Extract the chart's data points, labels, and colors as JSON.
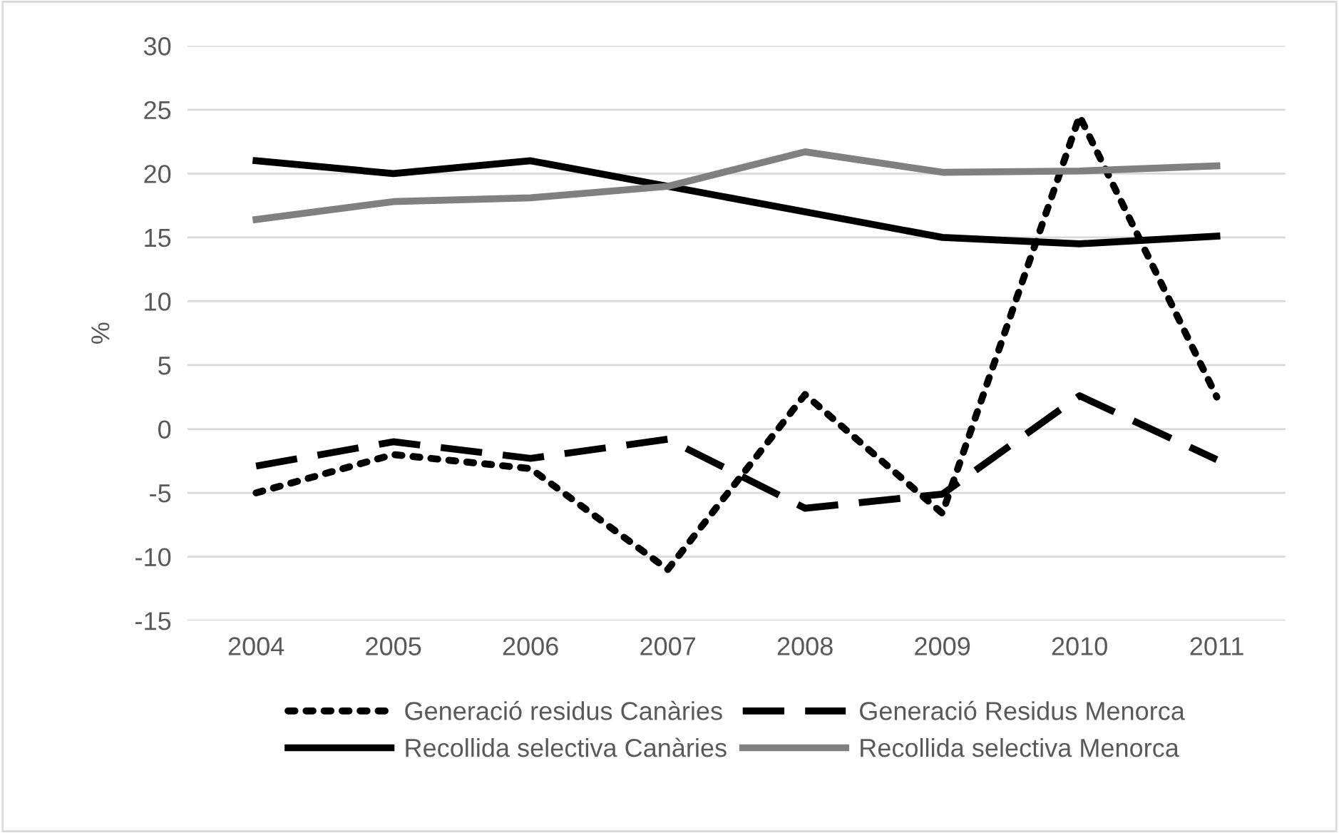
{
  "chart_data": {
    "type": "line",
    "ylabel": "%",
    "categories": [
      "2004",
      "2005",
      "2006",
      "2007",
      "2008",
      "2009",
      "2010",
      "2011"
    ],
    "ylim": [
      -15,
      30
    ],
    "yticks": [
      -15,
      -10,
      -5,
      0,
      5,
      10,
      15,
      20,
      25,
      30
    ],
    "grid": "y",
    "legend": "bottom",
    "marker": "none",
    "series": [
      {
        "name": "Generació residus Canàries",
        "color": "#000000",
        "line_style": "dotted",
        "values": [
          -5,
          -2,
          -3.1,
          -11,
          2.7,
          -6.6,
          24.5,
          2.5
        ]
      },
      {
        "name": "Recollida selectiva Canàries",
        "color": "#000000",
        "line_style": "solid",
        "values": [
          21,
          20,
          21,
          19,
          17,
          15,
          14.5,
          15.1
        ]
      },
      {
        "name": "Generació Residus Menorca",
        "color": "#000000",
        "line_style": "dashed",
        "values": [
          -2.9,
          -1,
          -2.3,
          -0.8,
          -6.2,
          -5.1,
          2.6,
          -2.4
        ]
      },
      {
        "name": "Recollida selectiva Menorca",
        "color": "#808080",
        "line_style": "solid",
        "values": [
          16.4,
          17.8,
          18.1,
          19,
          21.7,
          20.1,
          20.2,
          20.6
        ]
      }
    ]
  }
}
